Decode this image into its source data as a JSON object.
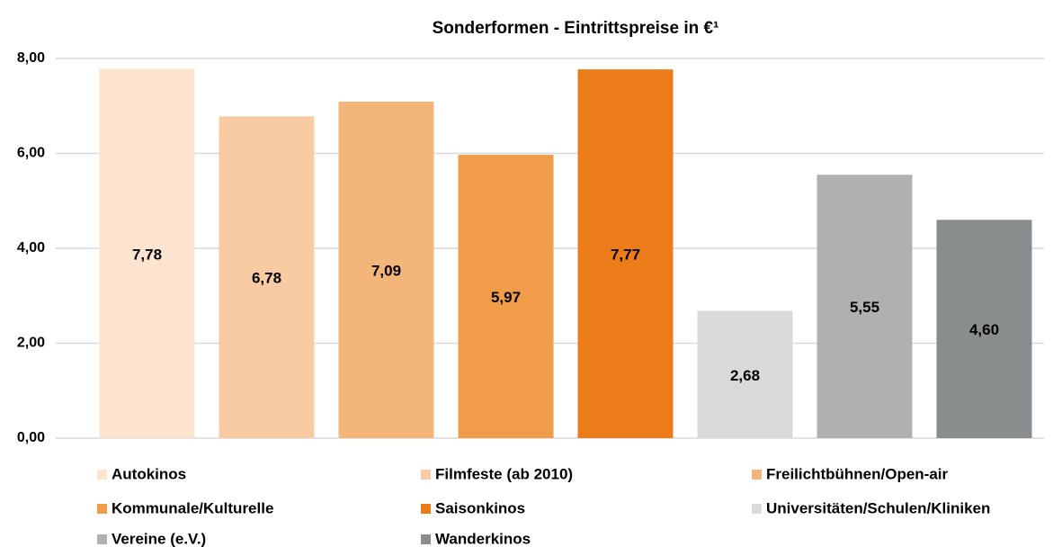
{
  "chart_data": {
    "type": "bar",
    "title": "Sonderformen - Eintrittspreise in €¹",
    "ylim": [
      0,
      8
    ],
    "yticks": [
      {
        "value": 0,
        "label": "0,00"
      },
      {
        "value": 2,
        "label": "2,00"
      },
      {
        "value": 4,
        "label": "4,00"
      },
      {
        "value": 6,
        "label": "6,00"
      },
      {
        "value": 8,
        "label": "8,00"
      }
    ],
    "grid": true,
    "legend": "bottom",
    "series": [
      {
        "name": "Autokinos",
        "color": "#fce4d0",
        "values": [
          7.78
        ],
        "value_labels": [
          "7,78"
        ]
      },
      {
        "name": "Filmfeste (ab 2010)",
        "color": "#f8cba2",
        "values": [
          6.78
        ],
        "value_labels": [
          "6,78"
        ]
      },
      {
        "name": "Freilichtbühnen/Open-air",
        "color": "#f4b57a",
        "values": [
          7.09
        ],
        "value_labels": [
          "7,09"
        ]
      },
      {
        "name": "Kommunale/Kulturelle",
        "color": "#f09c48",
        "values": [
          5.97
        ],
        "value_labels": [
          "5,97"
        ]
      },
      {
        "name": "Saisonkinos",
        "color": "#ec7c1a",
        "values": [
          7.77
        ],
        "value_labels": [
          "7,77"
        ]
      },
      {
        "name": "Universitäten/Schulen/Kliniken",
        "color": "#d9d9d9",
        "values": [
          2.68
        ],
        "value_labels": [
          "2,68"
        ]
      },
      {
        "name": "Vereine (e.V.)",
        "color": "#b0b0b0",
        "values": [
          5.55
        ],
        "value_labels": [
          "5,55"
        ]
      },
      {
        "name": "Wanderkinos",
        "color": "#8a8d8d",
        "values": [
          4.6
        ],
        "value_labels": [
          "4,60"
        ]
      }
    ]
  }
}
